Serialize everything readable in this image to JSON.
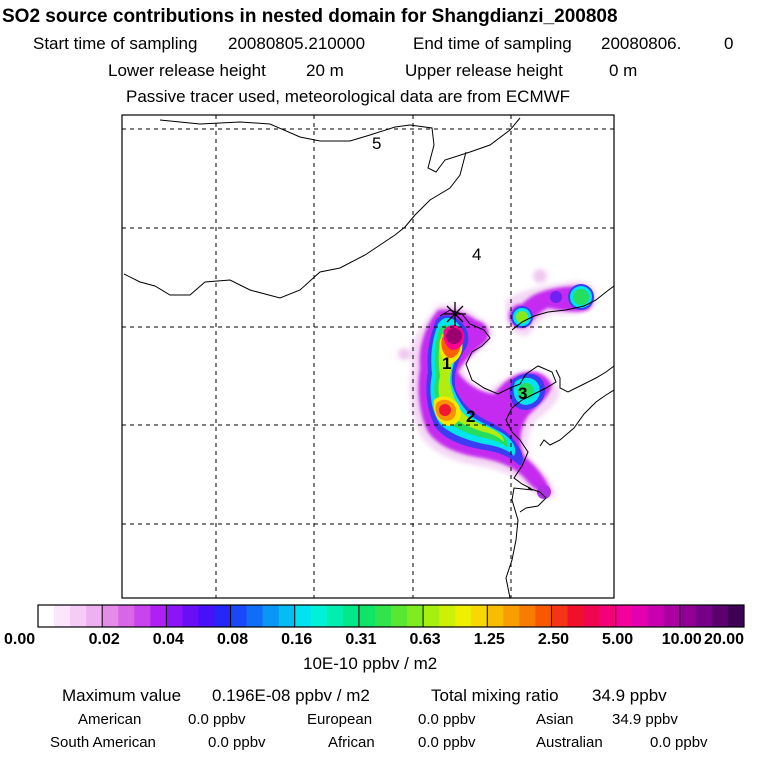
{
  "header": {
    "title": "SO2 source contributions in nested domain for Shangdianzi_200808",
    "start_label": "Start time of sampling",
    "start_value": "20080805.210000",
    "end_label": "End time of sampling",
    "end_value": "20080806.",
    "end_suffix": "0",
    "lower_label": "Lower release height",
    "lower_value": "20 m",
    "upper_label": "Upper release height",
    "upper_value": "0 m",
    "note": "Passive tracer used, meteorological data are from ECMWF"
  },
  "map": {
    "region_labels": [
      "5",
      "4",
      "1",
      "2",
      "3"
    ],
    "colors": {
      "coast": "#000000",
      "grid": "#000000",
      "frame": "#000000",
      "lowest": "#f7d6f7",
      "purple": "#c000ff",
      "blue": "#2030ff",
      "cyan": "#00f0f0",
      "green": "#20e060",
      "lime": "#a0f000",
      "yellow": "#f8f000",
      "orange": "#ff8000",
      "red": "#f00020",
      "magenta": "#ff00a0",
      "darkpurple": "#a00070"
    }
  },
  "colorbar": {
    "ticks": [
      "0.00",
      "0.02",
      "0.04",
      "0.08",
      "0.16",
      "0.31",
      "0.63",
      "1.25",
      "2.50",
      "5.00",
      "10.00",
      "20.00"
    ],
    "units": "10E-10 ppbv / m2",
    "segment_colors": [
      "#ffffff",
      "#fbe6fb",
      "#f6ccf6",
      "#eeb0f0",
      "#e58ce8",
      "#d866e6",
      "#c844ec",
      "#b020f4",
      "#8e14f8",
      "#6a0ef8",
      "#4610f8",
      "#2626f8",
      "#1a48f8",
      "#0e6ef8",
      "#0a96f6",
      "#06bcf2",
      "#00e2ee",
      "#00f0d8",
      "#00eeae",
      "#00e88a",
      "#10e466",
      "#30e44a",
      "#58e834",
      "#80ec20",
      "#a6f010",
      "#ccf008",
      "#eef000",
      "#f8d800",
      "#f8bc00",
      "#f89e00",
      "#f87c00",
      "#f85800",
      "#f43414",
      "#f0102c",
      "#f00650",
      "#f40078",
      "#f4009c",
      "#e400b0",
      "#c800b0",
      "#ac00a4",
      "#900094",
      "#760088",
      "#5c0070",
      "#3e0052"
    ]
  },
  "footer": {
    "max_label": "Maximum value",
    "max_value": "0.196E-08 ppbv / m2",
    "total_label": "Total mixing ratio",
    "total_value": "34.9 ppbv",
    "regions": [
      {
        "name": "American",
        "value": "0.0 ppbv"
      },
      {
        "name": "European",
        "value": "0.0 ppbv"
      },
      {
        "name": "Asian",
        "value": "34.9 ppbv"
      },
      {
        "name": "South American",
        "value": "0.0 ppbv"
      },
      {
        "name": "African",
        "value": "0.0 ppbv"
      },
      {
        "name": "Australian",
        "value": "0.0 ppbv"
      }
    ]
  }
}
